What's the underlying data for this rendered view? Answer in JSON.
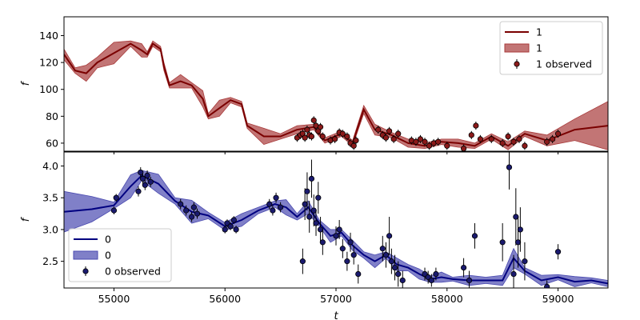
{
  "chart_data": [
    {
      "type": "line",
      "panel": "top",
      "xlabel": "",
      "ylabel": "f",
      "xlim": [
        54550,
        59450
      ],
      "ylim": [
        54,
        154
      ],
      "yticks": [
        60,
        80,
        100,
        120,
        140
      ],
      "legend_placement": "top-right",
      "grid": false,
      "colors": {
        "line": "#7a0000",
        "band": "#a83a3a",
        "points": "#8b1a1a"
      },
      "legend": {
        "line": "1",
        "band": "1",
        "points": "1 observed"
      },
      "mean": {
        "x": [
          54550,
          54650,
          54750,
          54850,
          55000,
          55150,
          55250,
          55300,
          55350,
          55420,
          55450,
          55500,
          55600,
          55700,
          55800,
          55850,
          55950,
          56050,
          56150,
          56200,
          56350,
          56500,
          56650,
          56800,
          56900,
          57050,
          57150,
          57250,
          57350,
          57500,
          57650,
          57800,
          57950,
          58100,
          58250,
          58400,
          58550,
          58700,
          58900,
          59150,
          59450
        ],
        "y": [
          126,
          114,
          112,
          120,
          127,
          134,
          129,
          126,
          134,
          130,
          117,
          103,
          106,
          103,
          93,
          80,
          86,
          92,
          89,
          73,
          65,
          65,
          70,
          72,
          62,
          67,
          60,
          85,
          70,
          66,
          60,
          58,
          61,
          60,
          58,
          65,
          58,
          67,
          62,
          70,
          73
        ]
      },
      "band": {
        "x": [
          54550,
          54650,
          54750,
          54850,
          55000,
          55150,
          55250,
          55300,
          55350,
          55420,
          55450,
          55500,
          55600,
          55700,
          55800,
          55850,
          55950,
          56050,
          56150,
          56200,
          56350,
          56500,
          56650,
          56800,
          56900,
          57050,
          57150,
          57250,
          57350,
          57500,
          57650,
          57800,
          57950,
          58100,
          58250,
          58400,
          58550,
          58700,
          58900,
          59150,
          59450
        ],
        "half_width": [
          4,
          2,
          6,
          4,
          8,
          2,
          5,
          2,
          2,
          2,
          3,
          2,
          5,
          2,
          6,
          2,
          6,
          2,
          2,
          2,
          6,
          2,
          3,
          2,
          2,
          2,
          2,
          3,
          4,
          2,
          3,
          2,
          2,
          3,
          2,
          2,
          3,
          2,
          4,
          8,
          18
        ]
      },
      "observed": {
        "x": [
          56650,
          56680,
          56700,
          56720,
          56740,
          56760,
          56780,
          56800,
          56820,
          56840,
          56860,
          56880,
          56950,
          56990,
          57030,
          57060,
          57100,
          57130,
          57160,
          57180,
          57380,
          57420,
          57450,
          57480,
          57520,
          57560,
          57680,
          57720,
          57760,
          57800,
          57840,
          57880,
          57920,
          58000,
          58150,
          58220,
          58260,
          58300,
          58400,
          58500,
          58550,
          58600,
          58650,
          58700,
          58900,
          58950,
          59000
        ],
        "y": [
          64,
          66,
          67,
          64,
          70,
          66,
          65,
          77,
          73,
          69,
          72,
          65,
          62,
          63,
          68,
          67,
          65,
          60,
          58,
          62,
          70,
          66,
          64,
          69,
          63,
          67,
          62,
          61,
          63,
          61,
          58,
          60,
          61,
          58,
          56,
          66,
          73,
          63,
          63,
          60,
          65,
          61,
          63,
          58,
          61,
          63,
          67
        ],
        "err": [
          3,
          3,
          3,
          3,
          3,
          3,
          3,
          3,
          3,
          3,
          3,
          3,
          3,
          3,
          3,
          3,
          3,
          3,
          3,
          3,
          3,
          3,
          3,
          3,
          3,
          3,
          3,
          3,
          3,
          3,
          3,
          3,
          3,
          3,
          3,
          3,
          3,
          3,
          3,
          3,
          3,
          3,
          3,
          3,
          3,
          3,
          3
        ]
      }
    },
    {
      "type": "line",
      "panel": "bottom",
      "xlabel": "t",
      "ylabel": "f",
      "xlim": [
        54550,
        59450
      ],
      "ylim": [
        2.08,
        4.22
      ],
      "yticks": [
        2.5,
        3.0,
        3.5,
        4.0
      ],
      "xticks": [
        55000,
        56000,
        57000,
        58000,
        59000
      ],
      "legend_placement": "bottom-left",
      "grid": false,
      "colors": {
        "line": "#000080",
        "band": "#4a4ab0",
        "points": "#1a1a6e"
      },
      "legend": {
        "line": "0",
        "band": "0",
        "points": "0 observed"
      },
      "mean": {
        "x": [
          54550,
          54800,
          55000,
          55150,
          55250,
          55400,
          55550,
          55700,
          55850,
          56000,
          56150,
          56300,
          56450,
          56550,
          56650,
          56750,
          56850,
          56950,
          57050,
          57150,
          57250,
          57350,
          57450,
          57550,
          57650,
          57750,
          57850,
          57950,
          58050,
          58200,
          58350,
          58500,
          58600,
          58700,
          58850,
          59000,
          59150,
          59300,
          59450
        ],
        "y": [
          3.28,
          3.32,
          3.38,
          3.68,
          3.85,
          3.72,
          3.45,
          3.28,
          3.22,
          3.05,
          3.15,
          3.3,
          3.4,
          3.35,
          3.2,
          3.35,
          3.1,
          2.9,
          2.95,
          2.75,
          2.6,
          2.5,
          2.6,
          2.45,
          2.4,
          2.3,
          2.22,
          2.25,
          2.22,
          2.2,
          2.2,
          2.2,
          2.55,
          2.35,
          2.2,
          2.25,
          2.18,
          2.2,
          2.15
        ]
      },
      "band": {
        "x": [
          54550,
          54800,
          55000,
          55150,
          55250,
          55400,
          55550,
          55700,
          55850,
          56000,
          56150,
          56300,
          56450,
          56550,
          56650,
          56750,
          56850,
          56950,
          57050,
          57150,
          57250,
          57350,
          57450,
          57550,
          57650,
          57750,
          57850,
          57950,
          58050,
          58200,
          58350,
          58500,
          58600,
          58700,
          58850,
          59000,
          59150,
          59300,
          59450
        ],
        "half_width": [
          0.32,
          0.2,
          0.05,
          0.18,
          0.08,
          0.15,
          0.05,
          0.18,
          0.05,
          0.06,
          0.1,
          0.05,
          0.05,
          0.12,
          0.05,
          0.1,
          0.05,
          0.1,
          0.05,
          0.08,
          0.05,
          0.1,
          0.05,
          0.1,
          0.05,
          0.08,
          0.05,
          0.08,
          0.03,
          0.08,
          0.05,
          0.08,
          0.15,
          0.05,
          0.08,
          0.04,
          0.08,
          0.04,
          0.05
        ]
      },
      "observed": {
        "x": [
          55000,
          55020,
          55220,
          55240,
          55260,
          55280,
          55300,
          55330,
          55600,
          55650,
          55700,
          55720,
          55750,
          56000,
          56020,
          56050,
          56080,
          56100,
          56400,
          56430,
          56460,
          56500,
          56700,
          56720,
          56740,
          56760,
          56780,
          56800,
          56820,
          56840,
          56860,
          56880,
          57000,
          57030,
          57060,
          57100,
          57130,
          57160,
          57200,
          57420,
          57450,
          57480,
          57500,
          57530,
          57560,
          57600,
          57800,
          57830,
          57860,
          57900,
          58150,
          58200,
          58250,
          58500,
          58560,
          58600,
          58620,
          58640,
          58660,
          58700,
          58900,
          59000
        ],
        "y": [
          3.3,
          3.5,
          3.6,
          3.9,
          3.8,
          3.7,
          3.85,
          3.75,
          3.4,
          3.3,
          3.2,
          3.35,
          3.25,
          3.0,
          3.1,
          3.05,
          3.15,
          3.0,
          3.4,
          3.3,
          3.5,
          3.35,
          2.5,
          3.4,
          3.6,
          3.2,
          3.8,
          3.3,
          3.1,
          3.5,
          3.0,
          2.8,
          2.9,
          3.0,
          2.7,
          2.5,
          2.8,
          2.6,
          2.3,
          2.7,
          2.6,
          2.9,
          2.5,
          2.4,
          2.3,
          2.2,
          2.3,
          2.25,
          2.2,
          2.3,
          2.4,
          2.2,
          2.9,
          2.8,
          3.98,
          2.3,
          3.2,
          2.8,
          3.0,
          2.5,
          2.1,
          2.65
        ],
        "err": [
          0.06,
          0.06,
          0.08,
          0.08,
          0.08,
          0.08,
          0.08,
          0.08,
          0.08,
          0.08,
          0.08,
          0.08,
          0.08,
          0.06,
          0.06,
          0.06,
          0.06,
          0.06,
          0.08,
          0.08,
          0.08,
          0.08,
          0.2,
          0.25,
          0.3,
          0.25,
          0.3,
          0.25,
          0.2,
          0.25,
          0.2,
          0.2,
          0.15,
          0.15,
          0.15,
          0.15,
          0.15,
          0.15,
          0.15,
          0.2,
          0.2,
          0.3,
          0.2,
          0.2,
          0.2,
          0.15,
          0.1,
          0.1,
          0.1,
          0.1,
          0.15,
          0.15,
          0.2,
          0.3,
          0.35,
          0.3,
          0.45,
          0.4,
          0.35,
          0.3,
          0.1,
          0.12
        ]
      }
    }
  ]
}
